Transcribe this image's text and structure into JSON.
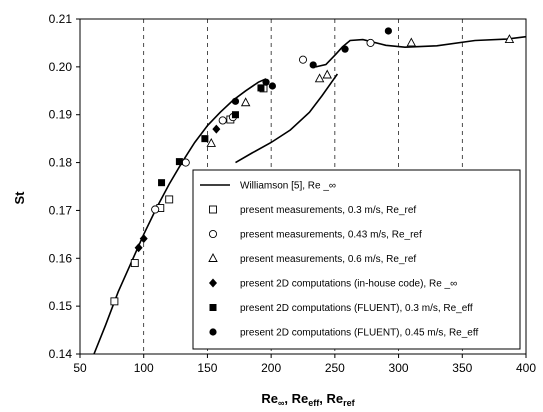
{
  "chart_data": {
    "type": "scatter",
    "xlabel": "Re∞, Reeff, Reref",
    "ylabel": "St",
    "xlim": [
      50,
      400
    ],
    "ylim": [
      0.14,
      0.21
    ],
    "x_ticks": [
      50,
      100,
      150,
      200,
      250,
      300,
      350,
      400
    ],
    "y_ticks": [
      0.14,
      0.15,
      0.16,
      0.17,
      0.18,
      0.19,
      0.2,
      0.21
    ],
    "x_tick_labels": [
      "50",
      "100",
      "150",
      "200",
      "250",
      "300",
      "350",
      "400"
    ],
    "y_tick_labels": [
      "0.14",
      "0.15",
      "0.16",
      "0.17",
      "0.18",
      "0.19",
      "0.20",
      "0.21"
    ],
    "grid": "vertical dashed",
    "legend_position": "lower-right",
    "series": [
      {
        "name": "Williamson [5], Re _∞",
        "marker": "line",
        "segments": [
          [
            [
              61,
              0.14
            ],
            [
              70,
              0.146
            ],
            [
              80,
              0.153
            ],
            [
              90,
              0.159
            ],
            [
              100,
              0.165
            ],
            [
              110,
              0.1705
            ],
            [
              120,
              0.1755
            ],
            [
              130,
              0.18
            ],
            [
              140,
              0.1842
            ],
            [
              150,
              0.1877
            ],
            [
              160,
              0.1905
            ],
            [
              170,
              0.193
            ],
            [
              180,
              0.195
            ],
            [
              190,
              0.1968
            ],
            [
              196,
              0.1975
            ]
          ],
          [
            [
              172,
              0.18
            ],
            [
              185,
              0.182
            ],
            [
              200,
              0.1842
            ],
            [
              215,
              0.1868
            ],
            [
              230,
              0.1905
            ],
            [
              240,
              0.194
            ],
            [
              248,
              0.197
            ],
            [
              252,
              0.1985
            ]
          ],
          [
            [
              235,
              0.2
            ],
            [
              243,
              0.2005
            ],
            [
              251,
              0.2027
            ],
            [
              256,
              0.2042
            ],
            [
              262,
              0.2055
            ],
            [
              272,
              0.2057
            ],
            [
              290,
              0.2045
            ],
            [
              305,
              0.2041
            ],
            [
              330,
              0.2044
            ],
            [
              360,
              0.2055
            ],
            [
              385,
              0.2058
            ],
            [
              400,
              0.2063
            ]
          ]
        ]
      },
      {
        "name": "present measurements, 0.3 m/s, Re_ref",
        "marker": "open-square",
        "x": [
          77,
          93,
          113,
          120,
          168,
          194
        ],
        "y": [
          0.151,
          0.159,
          0.1705,
          0.1723,
          0.189,
          0.1955
        ]
      },
      {
        "name": "present measurements, 0.43 m/s, Re_ref",
        "marker": "open-circle",
        "x": [
          109,
          133,
          162,
          170,
          225,
          278
        ],
        "y": [
          0.1702,
          0.18,
          0.1888,
          0.1895,
          0.2015,
          0.205
        ]
      },
      {
        "name": "present measurements, 0.6 m/s, Re_ref",
        "marker": "open-triangle",
        "x": [
          153,
          180,
          238,
          244,
          310,
          387
        ],
        "y": [
          0.184,
          0.1925,
          0.1975,
          0.1983,
          0.205,
          0.2057
        ]
      },
      {
        "name": "present 2D computations (in-house code), Re _∞",
        "marker": "diamond",
        "x": [
          96,
          100,
          157
        ],
        "y": [
          0.1622,
          0.1641,
          0.187
        ]
      },
      {
        "name": "present 2D computations (FLUENT), 0.3 m/s, Re_eff",
        "marker": "filled-square",
        "x": [
          114,
          128,
          148,
          172,
          192
        ],
        "y": [
          0.1758,
          0.1802,
          0.185,
          0.19,
          0.1956
        ]
      },
      {
        "name": "present 2D computations (FLUENT), 0.45 m/s, Re_eff",
        "marker": "filled-circle",
        "x": [
          172,
          196,
          201,
          233,
          258,
          292
        ],
        "y": [
          0.1928,
          0.1968,
          0.196,
          0.2004,
          0.2037,
          0.2075
        ]
      }
    ]
  }
}
